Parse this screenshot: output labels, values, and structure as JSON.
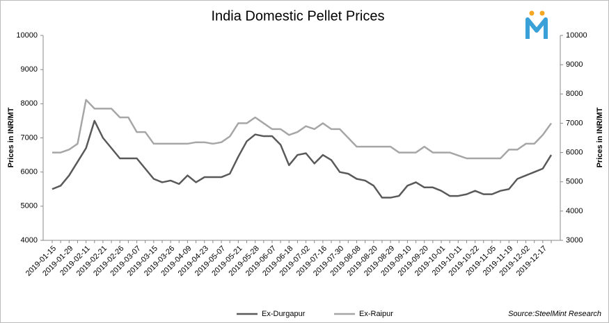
{
  "chart_data": {
    "type": "line",
    "title": "India Domestic Pellet Prices",
    "ylabel": "Prices in INR/MT",
    "y2label": "Prices in INR/MT",
    "source": "Source:SteelMint Research",
    "categories": [
      "2019-01-15",
      null,
      "2019-01-29",
      null,
      "2019-02-11",
      null,
      "2019-02-21",
      null,
      "2019-02-26",
      null,
      "2019-03-07",
      null,
      "2019-03-15",
      null,
      "2019-03-26",
      null,
      "2019-04-09",
      null,
      "2019-04-23",
      null,
      "2019-05-07",
      null,
      "2019-05-21",
      null,
      "2019-05-28",
      null,
      "2019-06-07",
      null,
      "2019-06-18",
      null,
      "2019-07-02",
      null,
      "2019-07-16",
      null,
      "2019-07-30",
      null,
      "2019-08-08",
      null,
      "2019-08-20",
      null,
      "2019-08-29",
      null,
      "2019-09-10",
      null,
      "2019-09-20",
      null,
      "2019-10-01",
      null,
      "2019-10-11",
      null,
      "2019-10-22",
      null,
      "2019-11-05",
      null,
      "2019-11-19",
      null,
      "2019-12-02",
      null,
      "2019-12-17",
      null
    ],
    "series": [
      {
        "name": "Ex-Durgapur",
        "color": "#595959",
        "axis": "y",
        "values": [
          5500,
          5600,
          5900,
          6300,
          6700,
          7500,
          7000,
          6700,
          6400,
          6400,
          6400,
          6100,
          5800,
          5700,
          5750,
          5650,
          5900,
          5700,
          5850,
          5850,
          5850,
          5950,
          6450,
          6900,
          7100,
          7050,
          7050,
          6800,
          6200,
          6500,
          6550,
          6250,
          6500,
          6350,
          6000,
          5950,
          5800,
          5750,
          5600,
          5250,
          5250,
          5300,
          5600,
          5700,
          5550,
          5550,
          5450,
          5300,
          5300,
          5350,
          5450,
          5350,
          5350,
          5450,
          5500,
          5800,
          5900,
          6000,
          6100,
          6500
        ]
      },
      {
        "name": "Ex-Raipur",
        "color": "#a6a6a6",
        "axis": "y2",
        "values": [
          6000,
          6000,
          6100,
          6300,
          7800,
          7500,
          7500,
          7500,
          7200,
          7200,
          6700,
          6700,
          6300,
          6300,
          6300,
          6300,
          6300,
          6350,
          6350,
          6300,
          6350,
          6550,
          7000,
          7000,
          7200,
          7000,
          6800,
          6800,
          6600,
          6700,
          6900,
          6800,
          7000,
          6800,
          6800,
          6500,
          6200,
          6200,
          6200,
          6200,
          6200,
          6000,
          6000,
          6000,
          6200,
          6000,
          6000,
          6000,
          5900,
          5800,
          5800,
          5800,
          5800,
          5800,
          6100,
          6100,
          6300,
          6300,
          6600,
          7000
        ]
      }
    ],
    "ylim": [
      4000,
      10000
    ],
    "yticks": [
      4000,
      5000,
      6000,
      7000,
      8000,
      9000,
      10000
    ],
    "y2lim": [
      3000,
      10000
    ],
    "y2ticks": [
      3000,
      4000,
      5000,
      6000,
      7000,
      8000,
      9000,
      10000
    ],
    "grid": false,
    "legend": "bottom"
  }
}
